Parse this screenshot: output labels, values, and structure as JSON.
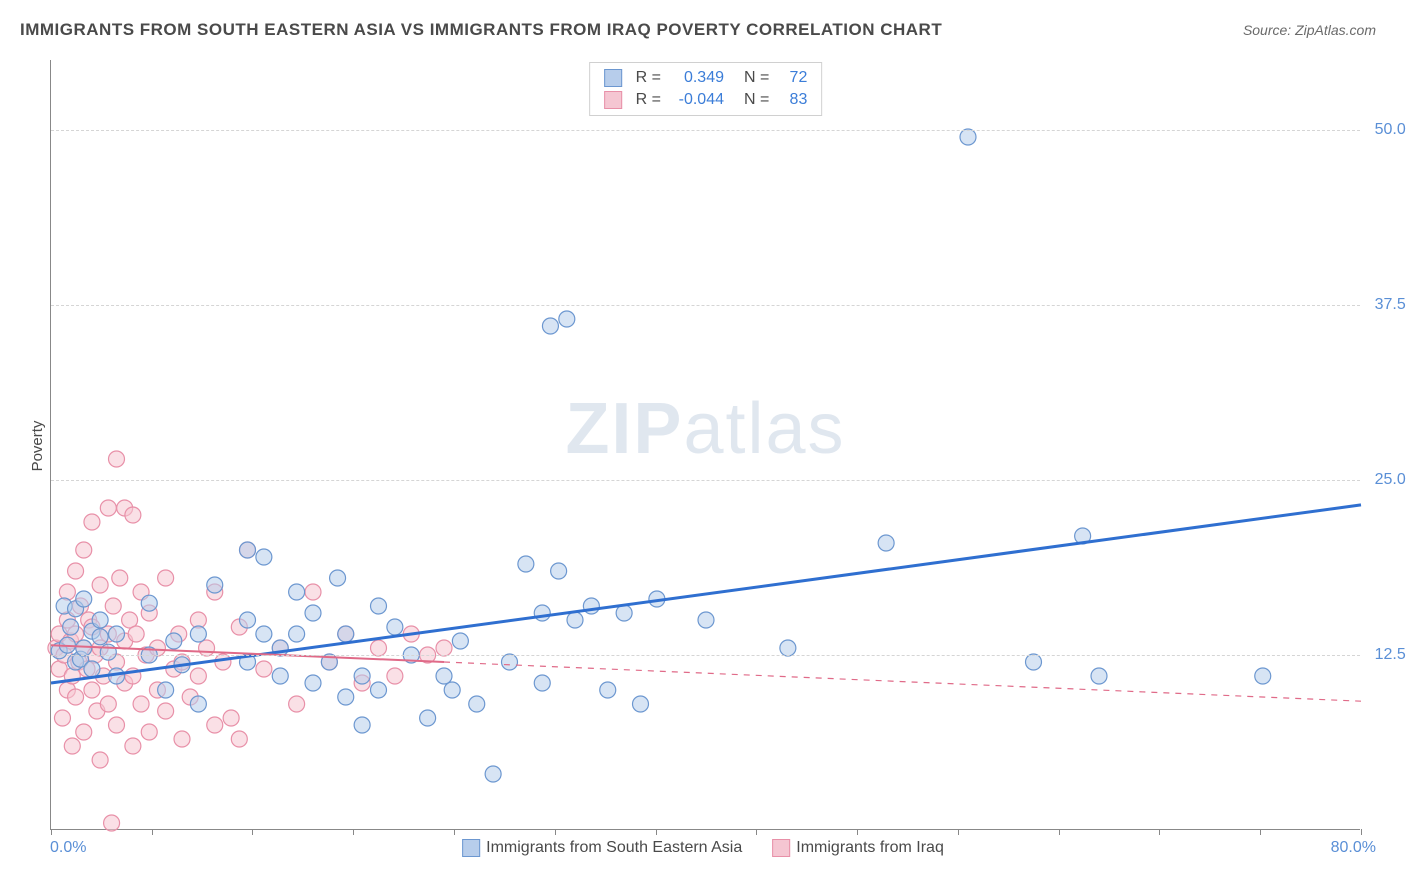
{
  "title": "IMMIGRANTS FROM SOUTH EASTERN ASIA VS IMMIGRANTS FROM IRAQ POVERTY CORRELATION CHART",
  "source": "Source: ZipAtlas.com",
  "watermark_a": "ZIP",
  "watermark_b": "atlas",
  "ylabel": "Poverty",
  "x_origin": "0.0%",
  "x_max": "80.0%",
  "axis": {
    "xlim": [
      0,
      80
    ],
    "ylim": [
      0,
      55
    ],
    "y_ticks": [
      12.5,
      25.0,
      37.5,
      50.0
    ],
    "y_tick_labels": [
      "12.5%",
      "25.0%",
      "37.5%",
      "50.0%"
    ],
    "x_minor_ticks": [
      0,
      6.15,
      12.3,
      18.46,
      24.6,
      30.77,
      36.92,
      43.08,
      49.23,
      55.38,
      61.54,
      67.69,
      73.85,
      80
    ]
  },
  "legend_top": {
    "rows": [
      {
        "color_fill": "#b7cdeb",
        "color_stroke": "#6c97d0",
        "R_label": "R =",
        "R": "0.349",
        "N_label": "N =",
        "N": "72"
      },
      {
        "color_fill": "#f5c6d2",
        "color_stroke": "#e890a8",
        "R_label": "R =",
        "R": "-0.044",
        "N_label": "N =",
        "N": "83"
      }
    ]
  },
  "legend_bottom": {
    "items": [
      {
        "label": "Immigrants from South Eastern Asia",
        "fill": "#b7cdeb",
        "stroke": "#6c97d0"
      },
      {
        "label": "Immigrants from Iraq",
        "fill": "#f5c6d2",
        "stroke": "#e890a8"
      }
    ]
  },
  "chart": {
    "type": "scatter",
    "background_color": "#ffffff",
    "grid_color": "#d5d5d5",
    "marker_radius": 8,
    "marker_opacity": 0.55,
    "series": [
      {
        "name": "Immigrants from South Eastern Asia",
        "fill": "#b7cdeb",
        "stroke": "#6c97d0",
        "trend": {
          "slope": 0.159,
          "intercept": 10.5,
          "solid_xmax": 80,
          "dash_xmax": 80,
          "stroke": "#2f6fd0",
          "width": 3
        },
        "points": [
          [
            0.5,
            12.8
          ],
          [
            0.8,
            16.0
          ],
          [
            1.0,
            13.2
          ],
          [
            1.2,
            14.5
          ],
          [
            1.5,
            12.0
          ],
          [
            1.5,
            15.8
          ],
          [
            1.8,
            12.2
          ],
          [
            2.0,
            13.0
          ],
          [
            2.0,
            16.5
          ],
          [
            2.5,
            11.5
          ],
          [
            2.5,
            14.2
          ],
          [
            3.0,
            13.8
          ],
          [
            3.0,
            15.0
          ],
          [
            3.5,
            12.7
          ],
          [
            4.0,
            11.0
          ],
          [
            4.0,
            14.0
          ],
          [
            6.0,
            12.5
          ],
          [
            6.0,
            16.2
          ],
          [
            7.0,
            10.0
          ],
          [
            7.5,
            13.5
          ],
          [
            8.0,
            11.8
          ],
          [
            9.0,
            9.0
          ],
          [
            9.0,
            14.0
          ],
          [
            10.0,
            17.5
          ],
          [
            12.0,
            20.0
          ],
          [
            12.0,
            12.0
          ],
          [
            12.0,
            15.0
          ],
          [
            13.0,
            14.0
          ],
          [
            13.0,
            19.5
          ],
          [
            14.0,
            13.0
          ],
          [
            14.0,
            11.0
          ],
          [
            15.0,
            17.0
          ],
          [
            15.0,
            14.0
          ],
          [
            16.0,
            10.5
          ],
          [
            16.0,
            15.5
          ],
          [
            17.0,
            12.0
          ],
          [
            17.5,
            18.0
          ],
          [
            18.0,
            9.5
          ],
          [
            18.0,
            14.0
          ],
          [
            19.0,
            7.5
          ],
          [
            19.0,
            11.0
          ],
          [
            20.0,
            16.0
          ],
          [
            20.0,
            10.0
          ],
          [
            21.0,
            14.5
          ],
          [
            22.0,
            12.5
          ],
          [
            23.0,
            8.0
          ],
          [
            24.0,
            11.0
          ],
          [
            24.5,
            10.0
          ],
          [
            25.0,
            13.5
          ],
          [
            26.0,
            9.0
          ],
          [
            27.0,
            4.0
          ],
          [
            28.0,
            12.0
          ],
          [
            29.0,
            19.0
          ],
          [
            30.5,
            36.0
          ],
          [
            31.5,
            36.5
          ],
          [
            30.0,
            15.5
          ],
          [
            30.0,
            10.5
          ],
          [
            31.0,
            18.5
          ],
          [
            32.0,
            15.0
          ],
          [
            33.0,
            16.0
          ],
          [
            34.0,
            10.0
          ],
          [
            35.0,
            15.5
          ],
          [
            36.0,
            9.0
          ],
          [
            37.0,
            16.5
          ],
          [
            40.0,
            15.0
          ],
          [
            45.0,
            13.0
          ],
          [
            51.0,
            20.5
          ],
          [
            56.0,
            49.5
          ],
          [
            60.0,
            12.0
          ],
          [
            63.0,
            21.0
          ],
          [
            64.0,
            11.0
          ],
          [
            74.0,
            11.0
          ]
        ]
      },
      {
        "name": "Immigrants from Iraq",
        "fill": "#f5c6d2",
        "stroke": "#e890a8",
        "trend": {
          "slope": -0.05,
          "intercept": 13.2,
          "solid_xmax": 24,
          "dash_xmax": 80,
          "stroke": "#e06a88",
          "width": 2
        },
        "points": [
          [
            0.3,
            13.0
          ],
          [
            0.5,
            11.5
          ],
          [
            0.5,
            14.0
          ],
          [
            0.7,
            8.0
          ],
          [
            0.8,
            12.5
          ],
          [
            1.0,
            10.0
          ],
          [
            1.0,
            15.0
          ],
          [
            1.0,
            17.0
          ],
          [
            1.2,
            13.5
          ],
          [
            1.3,
            11.0
          ],
          [
            1.3,
            6.0
          ],
          [
            1.5,
            14.0
          ],
          [
            1.5,
            18.5
          ],
          [
            1.5,
            9.5
          ],
          [
            1.7,
            12.0
          ],
          [
            1.8,
            16.0
          ],
          [
            2.0,
            7.0
          ],
          [
            2.0,
            13.0
          ],
          [
            2.0,
            20.0
          ],
          [
            2.2,
            11.5
          ],
          [
            2.3,
            15.0
          ],
          [
            2.5,
            10.0
          ],
          [
            2.5,
            14.5
          ],
          [
            2.5,
            22.0
          ],
          [
            2.7,
            12.5
          ],
          [
            2.8,
            8.5
          ],
          [
            3.0,
            13.0
          ],
          [
            3.0,
            17.5
          ],
          [
            3.0,
            5.0
          ],
          [
            3.2,
            11.0
          ],
          [
            3.5,
            14.0
          ],
          [
            3.5,
            9.0
          ],
          [
            3.5,
            23.0
          ],
          [
            3.7,
            0.5
          ],
          [
            3.8,
            16.0
          ],
          [
            4.0,
            12.0
          ],
          [
            4.0,
            7.5
          ],
          [
            4.0,
            26.5
          ],
          [
            4.2,
            18.0
          ],
          [
            4.5,
            10.5
          ],
          [
            4.5,
            13.5
          ],
          [
            4.5,
            23.0
          ],
          [
            4.8,
            15.0
          ],
          [
            5.0,
            11.0
          ],
          [
            5.0,
            6.0
          ],
          [
            5.0,
            22.5
          ],
          [
            5.2,
            14.0
          ],
          [
            5.5,
            9.0
          ],
          [
            5.5,
            17.0
          ],
          [
            5.8,
            12.5
          ],
          [
            6.0,
            7.0
          ],
          [
            6.0,
            15.5
          ],
          [
            6.5,
            10.0
          ],
          [
            6.5,
            13.0
          ],
          [
            7.0,
            8.5
          ],
          [
            7.0,
            18.0
          ],
          [
            7.5,
            11.5
          ],
          [
            7.8,
            14.0
          ],
          [
            8.0,
            6.5
          ],
          [
            8.0,
            12.0
          ],
          [
            8.5,
            9.5
          ],
          [
            9.0,
            11.0
          ],
          [
            9.0,
            15.0
          ],
          [
            9.5,
            13.0
          ],
          [
            10.0,
            7.5
          ],
          [
            10.0,
            17.0
          ],
          [
            10.5,
            12.0
          ],
          [
            11.0,
            8.0
          ],
          [
            11.5,
            14.5
          ],
          [
            11.5,
            6.5
          ],
          [
            12.0,
            20.0
          ],
          [
            13.0,
            11.5
          ],
          [
            14.0,
            13.0
          ],
          [
            15.0,
            9.0
          ],
          [
            16.0,
            17.0
          ],
          [
            17.0,
            12.0
          ],
          [
            18.0,
            14.0
          ],
          [
            19.0,
            10.5
          ],
          [
            20.0,
            13.0
          ],
          [
            21.0,
            11.0
          ],
          [
            22.0,
            14.0
          ],
          [
            23.0,
            12.5
          ],
          [
            24.0,
            13.0
          ]
        ]
      }
    ]
  }
}
